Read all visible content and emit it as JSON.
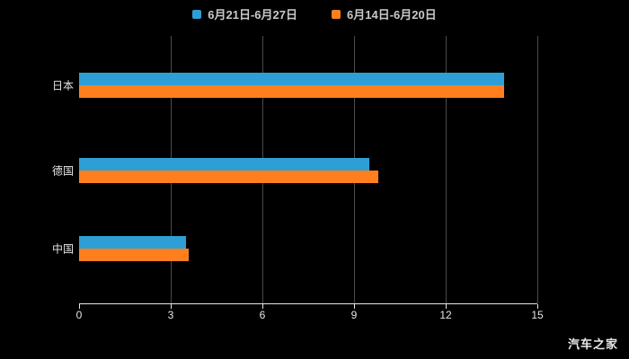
{
  "legend": {
    "items": [
      {
        "label": "6月21日-6月27日",
        "color": "#2e9fd4"
      },
      {
        "label": "6月14日-6月20日",
        "color": "#ff7f1e"
      }
    ]
  },
  "watermark": "汽车之家",
  "chart_data": {
    "type": "bar",
    "orientation": "horizontal",
    "title": "",
    "xlabel": "",
    "ylabel": "",
    "categories": [
      "日本",
      "德国",
      "中国"
    ],
    "series": [
      {
        "name": "6月21日-6月27日",
        "color": "#2e9fd4",
        "values": [
          13.9,
          9.5,
          3.5
        ]
      },
      {
        "name": "6月14日-6月20日",
        "color": "#ff7f1e",
        "values": [
          13.9,
          9.8,
          3.6
        ]
      }
    ],
    "xlim": [
      0,
      15
    ],
    "xticks": [
      0,
      3,
      6,
      9,
      12,
      15
    ],
    "grid": true,
    "legend_position": "top",
    "background": "#000000"
  }
}
